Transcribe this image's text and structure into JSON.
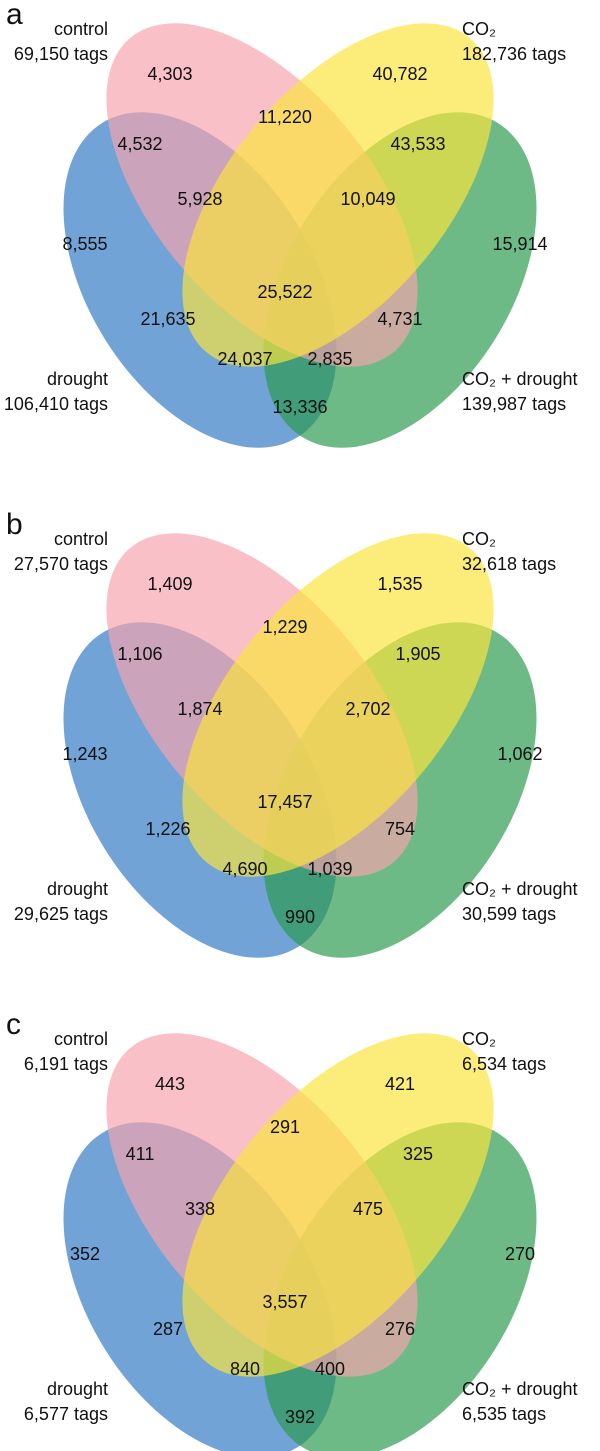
{
  "panels": [
    {
      "letter": "a",
      "sets": [
        {
          "name": "control",
          "tags": "69,150 tags"
        },
        {
          "name": "CO₂",
          "tags": "182,736 tags"
        },
        {
          "name": "drought",
          "tags": "106,410 tags"
        },
        {
          "name": "CO₂ + drought",
          "tags": "139,987 tags"
        }
      ],
      "regions": [
        "4,303",
        "40,782",
        "11,220",
        "4,532",
        "43,533",
        "5,928",
        "10,049",
        "8,555",
        "15,914",
        "25,522",
        "21,635",
        "4,731",
        "24,037",
        "2,835",
        "13,336"
      ]
    },
    {
      "letter": "b",
      "sets": [
        {
          "name": "control",
          "tags": "27,570 tags"
        },
        {
          "name": "CO₂",
          "tags": "32,618 tags"
        },
        {
          "name": "drought",
          "tags": "29,625 tags"
        },
        {
          "name": "CO₂ + drought",
          "tags": "30,599 tags"
        }
      ],
      "regions": [
        "1,409",
        "1,535",
        "1,229",
        "1,106",
        "1,905",
        "1,874",
        "2,702",
        "1,243",
        "1,062",
        "17,457",
        "1,226",
        "754",
        "4,690",
        "1,039",
        "990"
      ]
    },
    {
      "letter": "c",
      "sets": [
        {
          "name": "control",
          "tags": "6,191 tags"
        },
        {
          "name": "CO₂",
          "tags": "6,534 tags"
        },
        {
          "name": "drought",
          "tags": "6,577 tags"
        },
        {
          "name": "CO₂ + drought",
          "tags": "6,535 tags"
        }
      ],
      "regions": [
        "443",
        "421",
        "291",
        "411",
        "325",
        "338",
        "475",
        "352",
        "270",
        "3,557",
        "287",
        "276",
        "840",
        "400",
        "392"
      ]
    }
  ]
}
